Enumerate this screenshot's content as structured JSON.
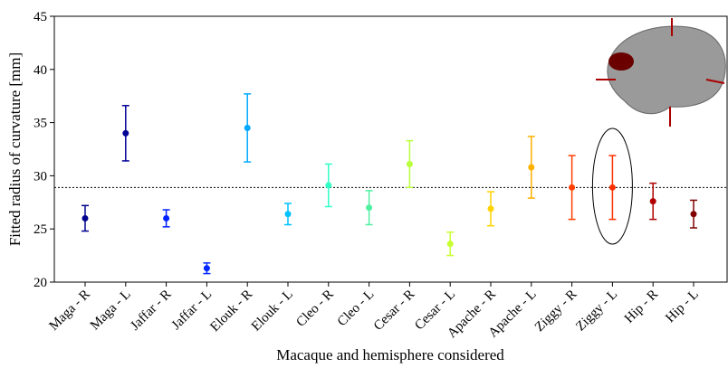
{
  "chart_data": {
    "type": "errorbar",
    "y_label": "Fitted radius of curvature [mm]",
    "x_label": "Macaque and hemisphere considered",
    "categories": [
      "Maga - R",
      "Maga - L",
      "Jaffar - R",
      "Jaffar - L",
      "Elouk - R",
      "Elouk - L",
      "Cleo - R",
      "Cleo - L",
      "Cesar - R",
      "Cesar - L",
      "Apache - R",
      "Apache - L",
      "Ziggy - R",
      "Ziggy - L",
      "Hip - R",
      "Hip - L"
    ],
    "values": [
      26.0,
      34.0,
      26.0,
      21.3,
      34.5,
      26.4,
      29.1,
      27.0,
      31.1,
      23.6,
      26.9,
      30.8,
      28.9,
      28.9,
      27.6,
      26.4
    ],
    "errors": [
      1.2,
      2.6,
      0.8,
      0.5,
      3.2,
      1.0,
      2.0,
      1.6,
      2.2,
      1.1,
      1.6,
      2.9,
      3.0,
      3.0,
      1.7,
      1.3
    ],
    "colors": [
      "#00008f",
      "#000096",
      "#0020ff",
      "#0028ff",
      "#00a8ff",
      "#00c0ff",
      "#30ffc6",
      "#50f0a0",
      "#b8ff3c",
      "#c8ff30",
      "#ffd200",
      "#ffb000",
      "#ff4000",
      "#ff3000",
      "#b00000",
      "#800000"
    ],
    "reference_line": 28.9,
    "ylim": [
      20,
      45
    ],
    "yticks": [
      20,
      25,
      30,
      35,
      40,
      45
    ]
  }
}
